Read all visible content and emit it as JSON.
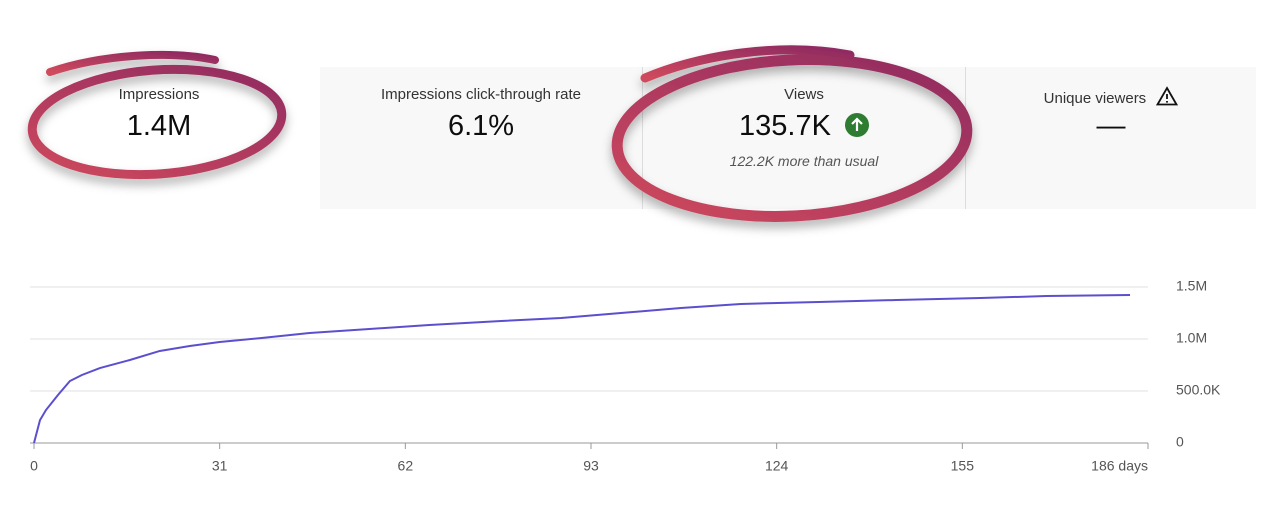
{
  "cards": [
    {
      "label": "Impressions",
      "value": "1.4M"
    },
    {
      "label": "Impressions click-through rate",
      "value": "6.1%"
    },
    {
      "label": "Views",
      "value": "135.7K",
      "note": "122.2K more than usual"
    },
    {
      "label": "Unique viewers",
      "value": "—"
    }
  ],
  "chart_data": {
    "type": "line",
    "x": [
      0,
      1,
      2,
      4,
      6,
      8,
      11,
      16,
      21,
      26,
      31,
      38,
      46,
      56,
      66,
      78,
      88,
      98,
      108,
      118,
      131,
      144,
      158,
      169,
      183
    ],
    "series": [
      {
        "color": "#5b4fcf",
        "values": [
          0,
          220000,
          317000,
          462000,
          596000,
          654000,
          721000,
          798000,
          885000,
          933000,
          971000,
          1010000,
          1058000,
          1096000,
          1135000,
          1173000,
          1202000,
          1250000,
          1298000,
          1337000,
          1356000,
          1375000,
          1394000,
          1413000,
          1423000
        ]
      }
    ],
    "xlim": [
      0,
      186
    ],
    "xticks": [
      0,
      31,
      62,
      93,
      124,
      155,
      {
        "value": 186,
        "label": "186 days"
      }
    ],
    "ylim": [
      0,
      1500000
    ],
    "yticks": [
      0,
      {
        "value": 500000,
        "label": "500.0K"
      },
      {
        "value": 1000000,
        "label": "1.0M"
      },
      {
        "value": 1500000,
        "label": "1.5M"
      }
    ],
    "grid": true
  }
}
